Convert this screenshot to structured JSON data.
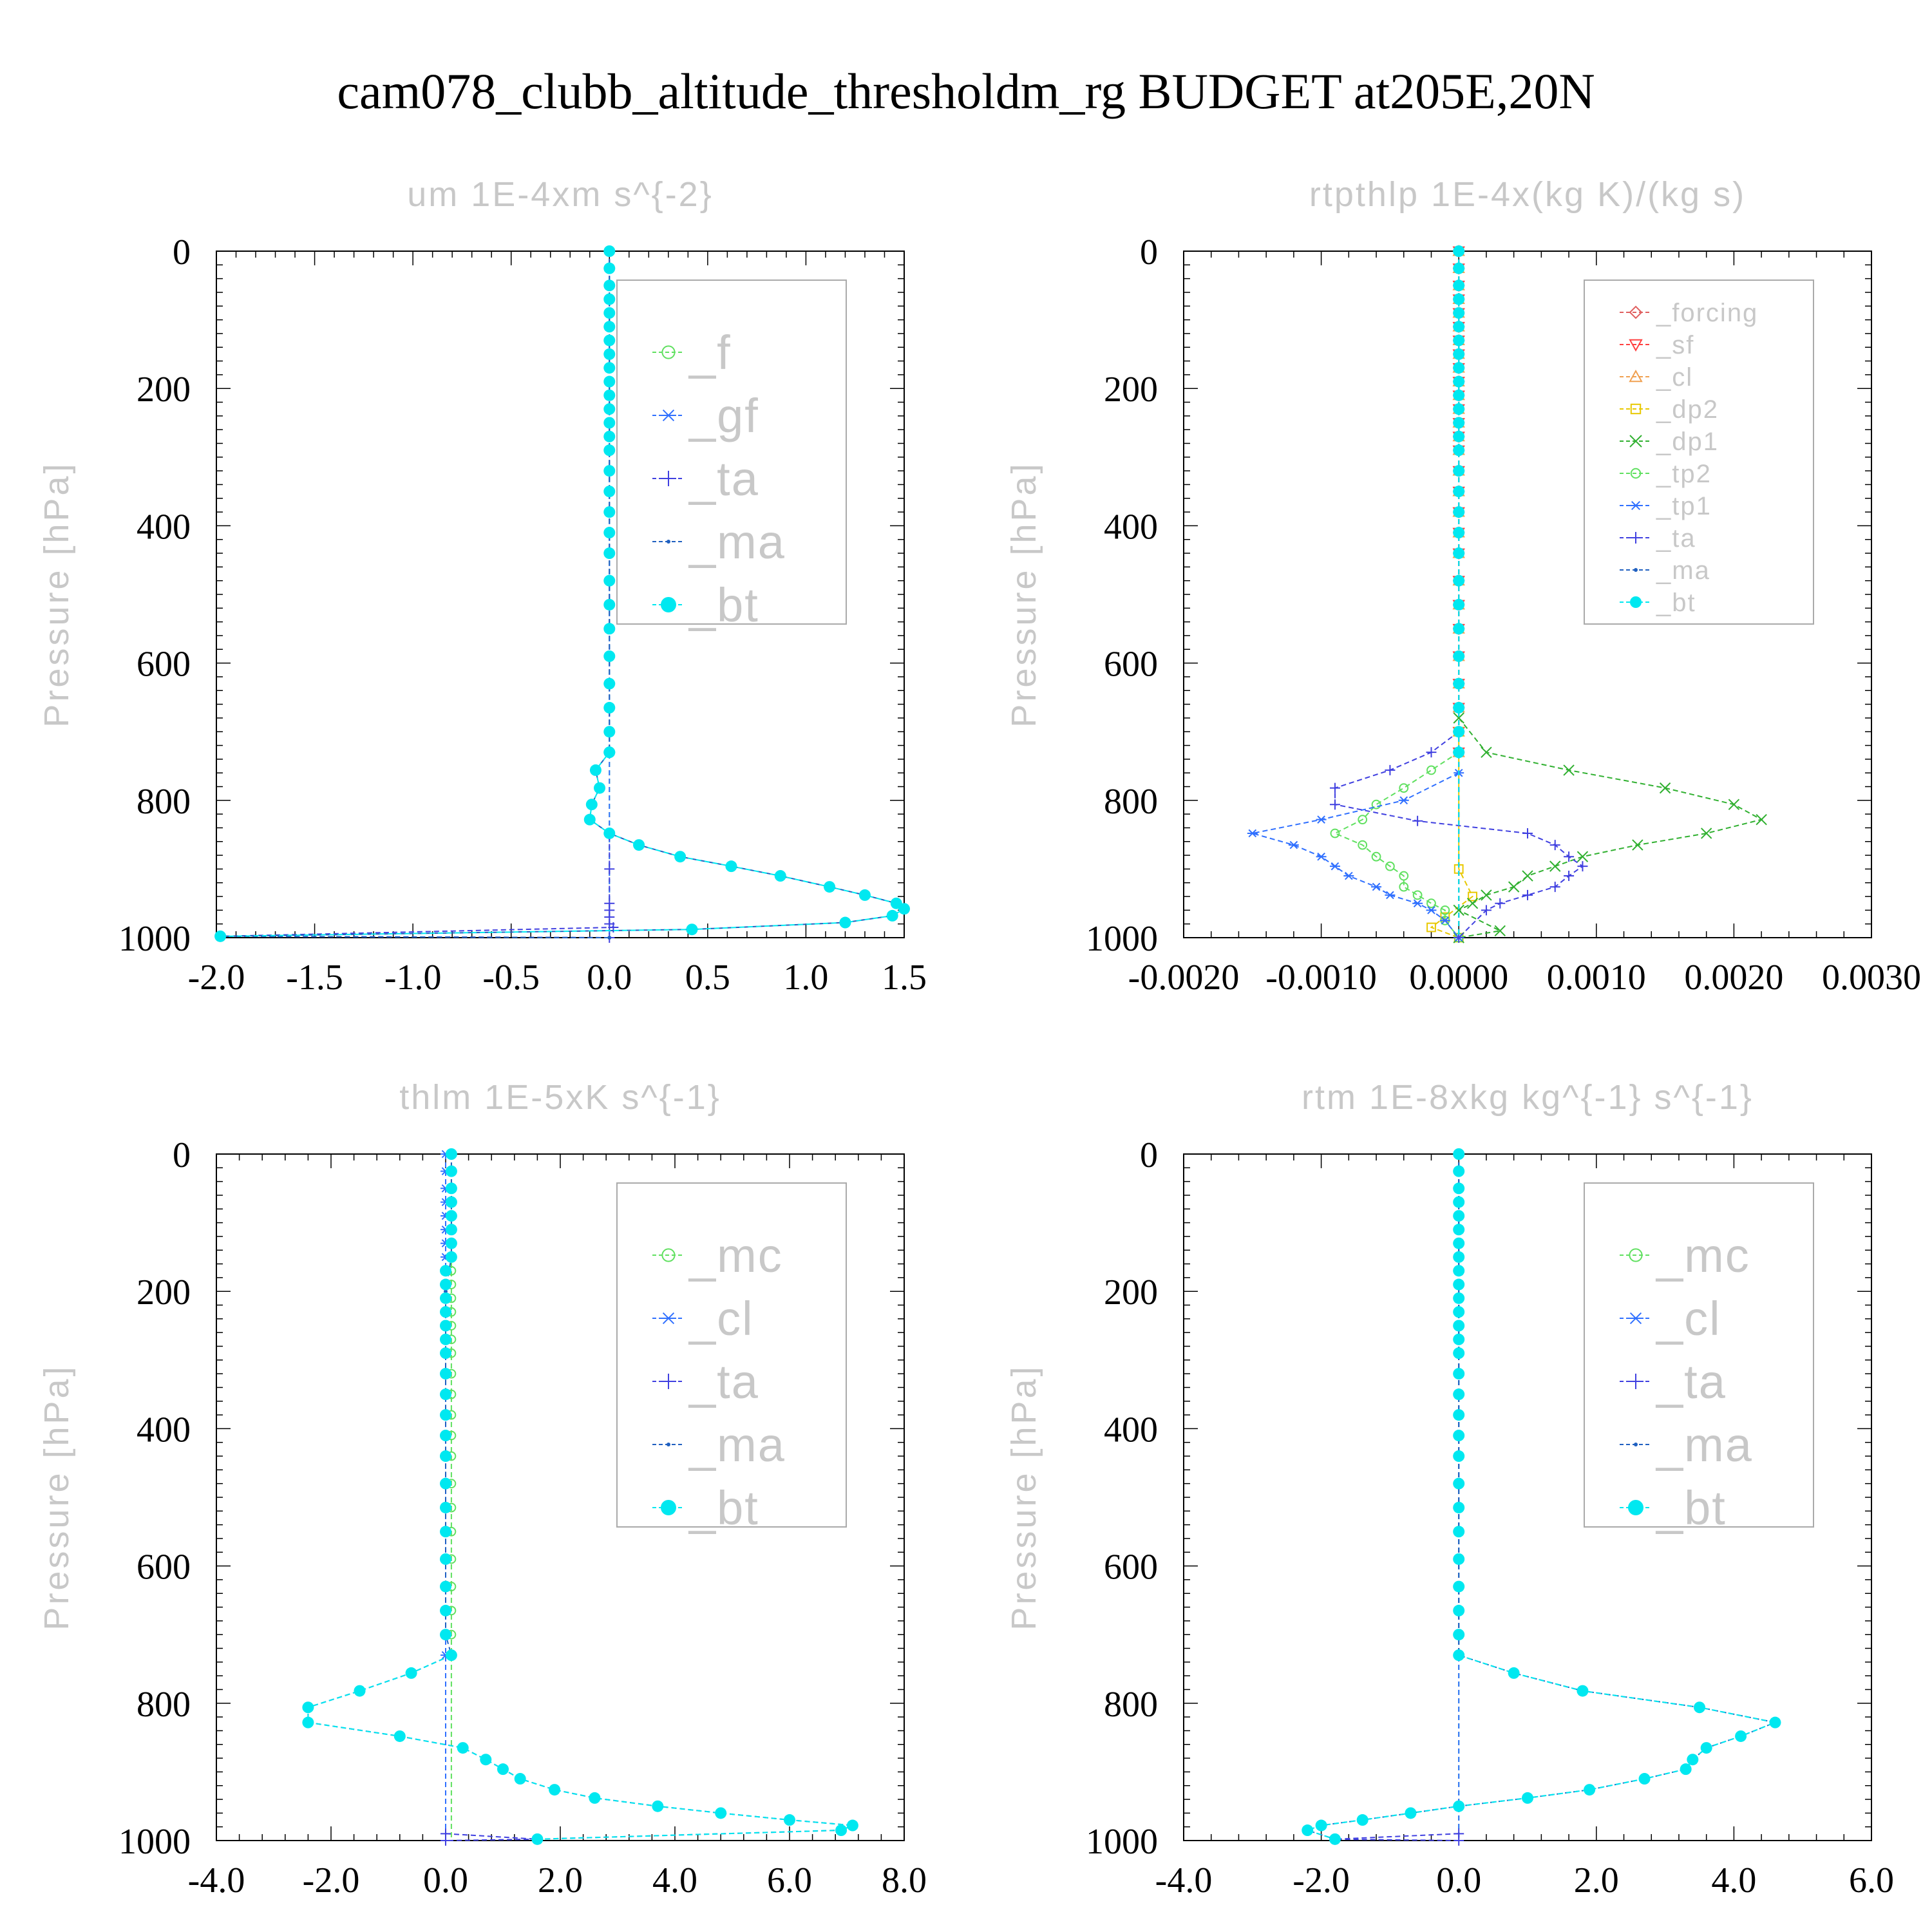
{
  "page_title": "cam078_clubb_altitude_thresholdm_rg  BUDGET at205E,20N",
  "colors": {
    "_forcing": "#e06060",
    "_sf": "#ff4040",
    "_cl_rtp": "#f0a050",
    "_dp2": "#e8c800",
    "_dp1": "#30b030",
    "_tp2": "#60e060",
    "_tp1": "#3070ff",
    "_ta": "#4040e0",
    "_ma": "#2060c0",
    "_bt": "#00e8f0",
    "_f": "#60e060",
    "_gf": "#3070ff",
    "_mc": "#60e060",
    "_cl": "#3070ff",
    "axis": "#000000",
    "faint_text": "#c8c8c8"
  },
  "chart_data": [
    {
      "id": "um",
      "type": "line",
      "title": "um   1E-4xm s^{-2}",
      "ylabel": "Pressure [hPa]",
      "xlim": [
        -2.0,
        1.5
      ],
      "ylim": [
        1000,
        0
      ],
      "xticks": [
        "-2.0",
        "-1.5",
        "-1.0",
        "-0.5",
        "0.0",
        "0.5",
        "1.0",
        "1.5"
      ],
      "xtick_values": [
        -2.0,
        -1.5,
        -1.0,
        -0.5,
        0.0,
        0.5,
        1.0,
        1.5
      ],
      "yticks": [
        "0",
        "200",
        "400",
        "600",
        "800",
        "1000"
      ],
      "legend_position": "top-right",
      "series": [
        {
          "name": "_f",
          "marker": "circle-open",
          "constant": 0.0
        },
        {
          "name": "_gf",
          "marker": "asterisk",
          "constant": 0.0
        },
        {
          "name": "_ta",
          "marker": "plus",
          "values": [
            [
              0,
              1000
            ],
            [
              -1.98,
              998
            ],
            [
              0.02,
              985
            ],
            [
              0,
              980
            ],
            [
              0,
              970
            ],
            [
              0,
              960
            ],
            [
              0,
              950
            ],
            [
              0,
              900
            ],
            [
              0,
              850
            ]
          ]
        },
        {
          "name": "_ma",
          "marker": "dot",
          "values": [
            [
              0,
              1000
            ],
            [
              -1.98,
              998
            ],
            [
              0.42,
              988
            ],
            [
              1.2,
              978
            ],
            [
              1.44,
              968
            ],
            [
              1.5,
              958
            ],
            [
              1.46,
              950
            ],
            [
              1.3,
              938
            ],
            [
              1.12,
              926
            ],
            [
              0.87,
              910
            ],
            [
              0.62,
              896
            ],
            [
              0.36,
              882
            ],
            [
              0.15,
              865
            ],
            [
              0.0,
              848
            ],
            [
              -0.1,
              828
            ],
            [
              -0.09,
              806
            ],
            [
              -0.05,
              782
            ],
            [
              -0.07,
              756
            ],
            [
              0,
              730
            ],
            [
              0,
              700
            ],
            [
              0,
              0
            ]
          ]
        },
        {
          "name": "_bt",
          "marker": "filled-circle",
          "values": [
            [
              -1.98,
              998
            ],
            [
              0.42,
              988
            ],
            [
              1.2,
              978
            ],
            [
              1.44,
              968
            ],
            [
              1.5,
              958
            ],
            [
              1.46,
              950
            ],
            [
              1.3,
              938
            ],
            [
              1.12,
              926
            ],
            [
              0.87,
              910
            ],
            [
              0.62,
              896
            ],
            [
              0.36,
              882
            ],
            [
              0.15,
              865
            ],
            [
              0.0,
              848
            ],
            [
              -0.1,
              828
            ],
            [
              -0.09,
              806
            ],
            [
              -0.05,
              782
            ],
            [
              -0.07,
              756
            ],
            [
              0,
              730
            ]
          ]
        }
      ]
    },
    {
      "id": "rtpthlp",
      "type": "line",
      "title": "rtpthlp   1E-4x(kg K)/(kg s)",
      "ylabel": "Pressure [hPa]",
      "xlim": [
        -0.002,
        0.003
      ],
      "ylim": [
        1000,
        0
      ],
      "xticks": [
        "-0.0020",
        "-0.0010",
        "0.0000",
        "0.0010",
        "0.0020",
        "0.0030"
      ],
      "xtick_values": [
        -0.002,
        -0.001,
        0.0,
        0.001,
        0.002,
        0.003
      ],
      "yticks": [
        "0",
        "200",
        "400",
        "600",
        "800",
        "1000"
      ],
      "legend_position": "top-right",
      "series": [
        {
          "name": "_forcing",
          "marker": "diamond-open",
          "constant": 0.0
        },
        {
          "name": "_sf",
          "marker": "triangle-down",
          "constant": 0.0
        },
        {
          "name": "_cl",
          "marker": "triangle-up",
          "constant": 0.0
        },
        {
          "name": "_dp2",
          "marker": "square-open",
          "values": [
            [
              0,
              700
            ],
            [
              0,
              900
            ],
            [
              0.0001,
              940
            ],
            [
              -0.0001,
              970
            ],
            [
              -0.0002,
              985
            ],
            [
              0,
              1000
            ]
          ]
        },
        {
          "name": "_dp1",
          "marker": "cross",
          "values": [
            [
              0,
              680
            ],
            [
              0.0002,
              730
            ],
            [
              0.0008,
              756
            ],
            [
              0.0015,
              782
            ],
            [
              0.002,
              806
            ],
            [
              0.0022,
              828
            ],
            [
              0.0018,
              848
            ],
            [
              0.0013,
              865
            ],
            [
              0.0009,
              882
            ],
            [
              0.0007,
              896
            ],
            [
              0.0005,
              910
            ],
            [
              0.0004,
              926
            ],
            [
              0.0002,
              938
            ],
            [
              0.0001,
              950
            ],
            [
              0,
              960
            ],
            [
              0.0003,
              990
            ],
            [
              0,
              1000
            ]
          ]
        },
        {
          "name": "_tp2",
          "marker": "circle-open",
          "values": [
            [
              0,
              730
            ],
            [
              -0.0002,
              756
            ],
            [
              -0.0004,
              782
            ],
            [
              -0.0006,
              806
            ],
            [
              -0.0007,
              828
            ],
            [
              -0.0009,
              848
            ],
            [
              -0.0007,
              865
            ],
            [
              -0.0006,
              882
            ],
            [
              -0.0005,
              896
            ],
            [
              -0.0004,
              910
            ],
            [
              -0.0004,
              926
            ],
            [
              -0.0003,
              938
            ],
            [
              -0.0002,
              950
            ],
            [
              -0.0001,
              960
            ],
            [
              -0.0001,
              975
            ],
            [
              0,
              1000
            ]
          ]
        },
        {
          "name": "_tp1",
          "marker": "asterisk",
          "values": [
            [
              0,
              760
            ],
            [
              -0.0004,
              800
            ],
            [
              -0.001,
              828
            ],
            [
              -0.0015,
              848
            ],
            [
              -0.0012,
              865
            ],
            [
              -0.001,
              882
            ],
            [
              -0.0009,
              896
            ],
            [
              -0.0008,
              910
            ],
            [
              -0.0006,
              926
            ],
            [
              -0.0005,
              938
            ],
            [
              -0.0003,
              950
            ],
            [
              -0.0002,
              960
            ],
            [
              -0.0001,
              975
            ],
            [
              0,
              1000
            ]
          ]
        },
        {
          "name": "_ta",
          "marker": "plus",
          "values": [
            [
              0,
              700
            ],
            [
              -0.0002,
              730
            ],
            [
              -0.0005,
              756
            ],
            [
              -0.0009,
              782
            ],
            [
              -0.0009,
              806
            ],
            [
              -0.0003,
              830
            ],
            [
              0.0005,
              848
            ],
            [
              0.0007,
              865
            ],
            [
              0.0008,
              882
            ],
            [
              0.0009,
              896
            ],
            [
              0.0008,
              910
            ],
            [
              0.0007,
              926
            ],
            [
              0.0005,
              938
            ],
            [
              0.0003,
              950
            ],
            [
              0.0002,
              960
            ],
            [
              0,
              1000
            ]
          ]
        },
        {
          "name": "_ma",
          "marker": "dot",
          "constant": 0.0
        },
        {
          "name": "_bt",
          "marker": "filled-circle",
          "constant": 0.0
        }
      ]
    },
    {
      "id": "thlm",
      "type": "line",
      "title": "thlm   1E-5xK s^{-1}",
      "ylabel": "Pressure [hPa]",
      "xlim": [
        -4.0,
        8.0
      ],
      "ylim": [
        1000,
        0
      ],
      "xticks": [
        "-4.0",
        "-2.0",
        "0.0",
        "2.0",
        "4.0",
        "6.0",
        "8.0"
      ],
      "xtick_values": [
        -4.0,
        -2.0,
        0.0,
        2.0,
        4.0,
        6.0,
        8.0
      ],
      "yticks": [
        "0",
        "200",
        "400",
        "600",
        "800",
        "1000"
      ],
      "legend_position": "top-right",
      "series": [
        {
          "name": "_mc",
          "marker": "circle-open",
          "constant": 0.1
        },
        {
          "name": "_cl",
          "marker": "asterisk",
          "constant": 0.0
        },
        {
          "name": "_ta",
          "marker": "plus",
          "values": [
            [
              0,
              990
            ],
            [
              1.6,
              998
            ],
            [
              0,
              1000
            ]
          ]
        },
        {
          "name": "_ma",
          "marker": "dot",
          "values": [
            [
              0.1,
              0
            ],
            [
              0.1,
              150
            ],
            [
              0,
              200
            ],
            [
              0,
              700
            ],
            [
              0.1,
              730
            ],
            [
              -0.6,
              756
            ],
            [
              -1.5,
              782
            ],
            [
              -2.4,
              806
            ],
            [
              -2.4,
              828
            ],
            [
              -0.8,
              848
            ],
            [
              0.3,
              865
            ],
            [
              0.7,
              882
            ],
            [
              1.0,
              896
            ],
            [
              1.3,
              910
            ],
            [
              1.9,
              926
            ],
            [
              2.6,
              938
            ],
            [
              3.7,
              950
            ],
            [
              4.8,
              960
            ],
            [
              6.0,
              970
            ],
            [
              7.1,
              978
            ],
            [
              6.9,
              985
            ],
            [
              1.6,
              998
            ]
          ]
        },
        {
          "name": "_bt",
          "marker": "filled-circle",
          "values": [
            [
              0.1,
              730
            ],
            [
              -0.6,
              756
            ],
            [
              -1.5,
              782
            ],
            [
              -2.4,
              806
            ],
            [
              -2.4,
              828
            ],
            [
              -0.8,
              848
            ],
            [
              0.3,
              865
            ],
            [
              0.7,
              882
            ],
            [
              1.0,
              896
            ],
            [
              1.3,
              910
            ],
            [
              1.9,
              926
            ],
            [
              2.6,
              938
            ],
            [
              3.7,
              950
            ],
            [
              4.8,
              960
            ],
            [
              6.0,
              970
            ],
            [
              7.1,
              978
            ],
            [
              6.9,
              985
            ],
            [
              1.6,
              998
            ]
          ]
        }
      ]
    },
    {
      "id": "rtm",
      "type": "line",
      "title": "rtm   1E-8xkg kg^{-1} s^{-1}",
      "ylabel": "Pressure [hPa]",
      "xlim": [
        -4.0,
        6.0
      ],
      "ylim": [
        1000,
        0
      ],
      "xticks": [
        "-4.0",
        "-2.0",
        "0.0",
        "2.0",
        "4.0",
        "6.0"
      ],
      "xtick_values": [
        -4.0,
        -2.0,
        0.0,
        2.0,
        4.0,
        6.0
      ],
      "yticks": [
        "0",
        "200",
        "400",
        "600",
        "800",
        "1000"
      ],
      "legend_position": "top-right",
      "series": [
        {
          "name": "_mc",
          "marker": "circle-open",
          "constant": 0.0
        },
        {
          "name": "_cl",
          "marker": "asterisk",
          "constant": 0.0
        },
        {
          "name": "_ta",
          "marker": "plus",
          "values": [
            [
              0,
              990
            ],
            [
              -1.8,
              998
            ],
            [
              0,
              1000
            ]
          ]
        },
        {
          "name": "_ma",
          "marker": "dot",
          "values": [
            [
              0,
              0
            ],
            [
              0,
              700
            ],
            [
              0,
              730
            ],
            [
              0.8,
              756
            ],
            [
              1.8,
              782
            ],
            [
              3.5,
              806
            ],
            [
              4.6,
              828
            ],
            [
              4.1,
              848
            ],
            [
              3.6,
              865
            ],
            [
              3.4,
              882
            ],
            [
              3.3,
              896
            ],
            [
              2.7,
              910
            ],
            [
              1.9,
              926
            ],
            [
              1.0,
              938
            ],
            [
              0,
              950
            ],
            [
              -0.7,
              960
            ],
            [
              -1.4,
              970
            ],
            [
              -2.0,
              978
            ],
            [
              -2.2,
              985
            ],
            [
              -1.8,
              998
            ]
          ]
        },
        {
          "name": "_bt",
          "marker": "filled-circle",
          "values": [
            [
              0,
              730
            ],
            [
              0.8,
              756
            ],
            [
              1.8,
              782
            ],
            [
              3.5,
              806
            ],
            [
              4.6,
              828
            ],
            [
              4.1,
              848
            ],
            [
              3.6,
              865
            ],
            [
              3.4,
              882
            ],
            [
              3.3,
              896
            ],
            [
              2.7,
              910
            ],
            [
              1.9,
              926
            ],
            [
              1.0,
              938
            ],
            [
              0,
              950
            ],
            [
              -0.7,
              960
            ],
            [
              -1.4,
              970
            ],
            [
              -2.0,
              978
            ],
            [
              -2.2,
              985
            ],
            [
              -1.8,
              998
            ]
          ]
        }
      ]
    }
  ]
}
